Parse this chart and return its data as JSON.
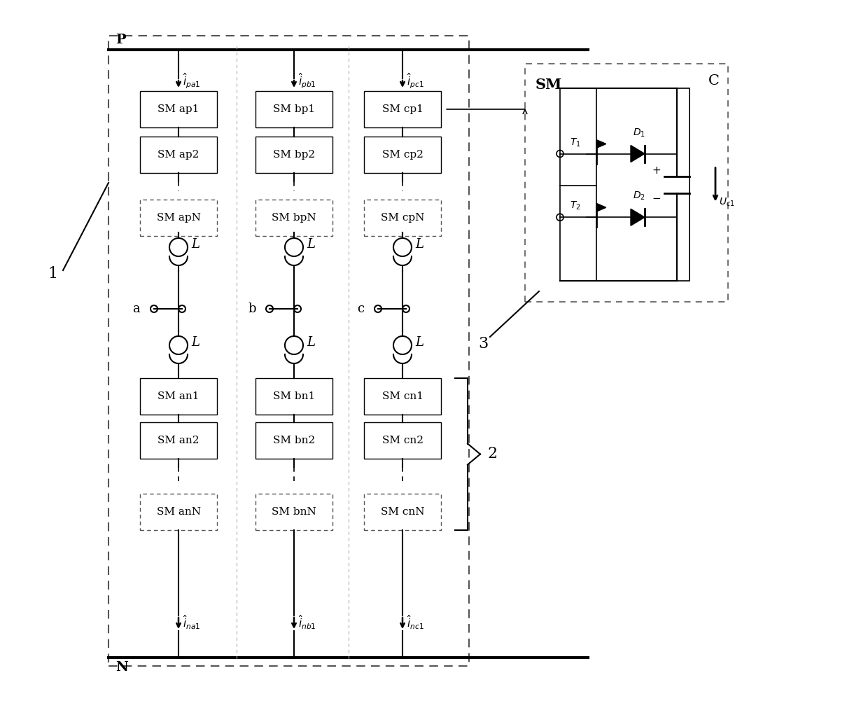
{
  "bg_color": "#ffffff",
  "line_color": "#000000",
  "fig_width": 12.4,
  "fig_height": 10.11,
  "sm_labels_upper": [
    [
      "SM ap1",
      "SM ap2",
      "SM apN"
    ],
    [
      "SM bp1",
      "SM bp2",
      "SM bpN"
    ],
    [
      "SM cp1",
      "SM cp2",
      "SM cpN"
    ]
  ],
  "sm_labels_lower": [
    [
      "SM an1",
      "SM an2",
      "SM anN"
    ],
    [
      "SM bn1",
      "SM bn2",
      "SM bnN"
    ],
    [
      "SM cn1",
      "SM cn2",
      "SM cnN"
    ]
  ],
  "i_upper_labels": [
    "$\\hat{i}_{pa1}$",
    "$\\hat{i}_{pb1}$",
    "$\\hat{i}_{pc1}$"
  ],
  "i_lower_labels": [
    "$\\hat{i}_{na1}$",
    "$\\hat{i}_{nb1}$",
    "$\\hat{i}_{nc1}$"
  ],
  "phase_labels": [
    "a",
    "b",
    "c"
  ],
  "label1": "1",
  "label2": "2",
  "label3": "3"
}
